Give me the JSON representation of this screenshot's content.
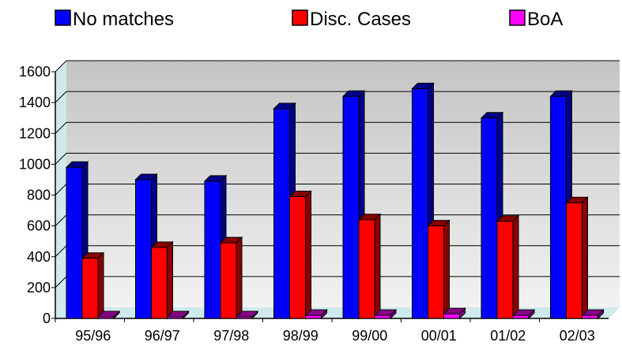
{
  "chart_data": {
    "type": "bar",
    "categories": [
      "95/96",
      "96/97",
      "97/98",
      "98/99",
      "99/00",
      "00/01",
      "01/02",
      "02/03"
    ],
    "series": [
      {
        "name": "No matches",
        "values": [
          980,
          900,
          890,
          1360,
          1440,
          1490,
          1300,
          1440
        ]
      },
      {
        "name": "Disc. Cases",
        "values": [
          390,
          460,
          490,
          790,
          640,
          600,
          630,
          750
        ]
      },
      {
        "name": "BoA",
        "values": [
          10,
          10,
          10,
          20,
          20,
          30,
          20,
          20
        ]
      }
    ],
    "ylim": [
      0,
      1600
    ],
    "yticks": [
      0,
      200,
      400,
      600,
      800,
      1000,
      1200,
      1400,
      1600
    ],
    "grid": true,
    "legend_position": "top",
    "colors": {
      "series": [
        "#0000ff",
        "#ff0000",
        "#ff00ff"
      ],
      "series_dark": [
        "#000088",
        "#880000",
        "#880088"
      ],
      "wall_top": "#c4c4c4",
      "wall_bottom": "#f2f2f2",
      "floor": "#cfe9ec",
      "axis": "#000000"
    }
  }
}
